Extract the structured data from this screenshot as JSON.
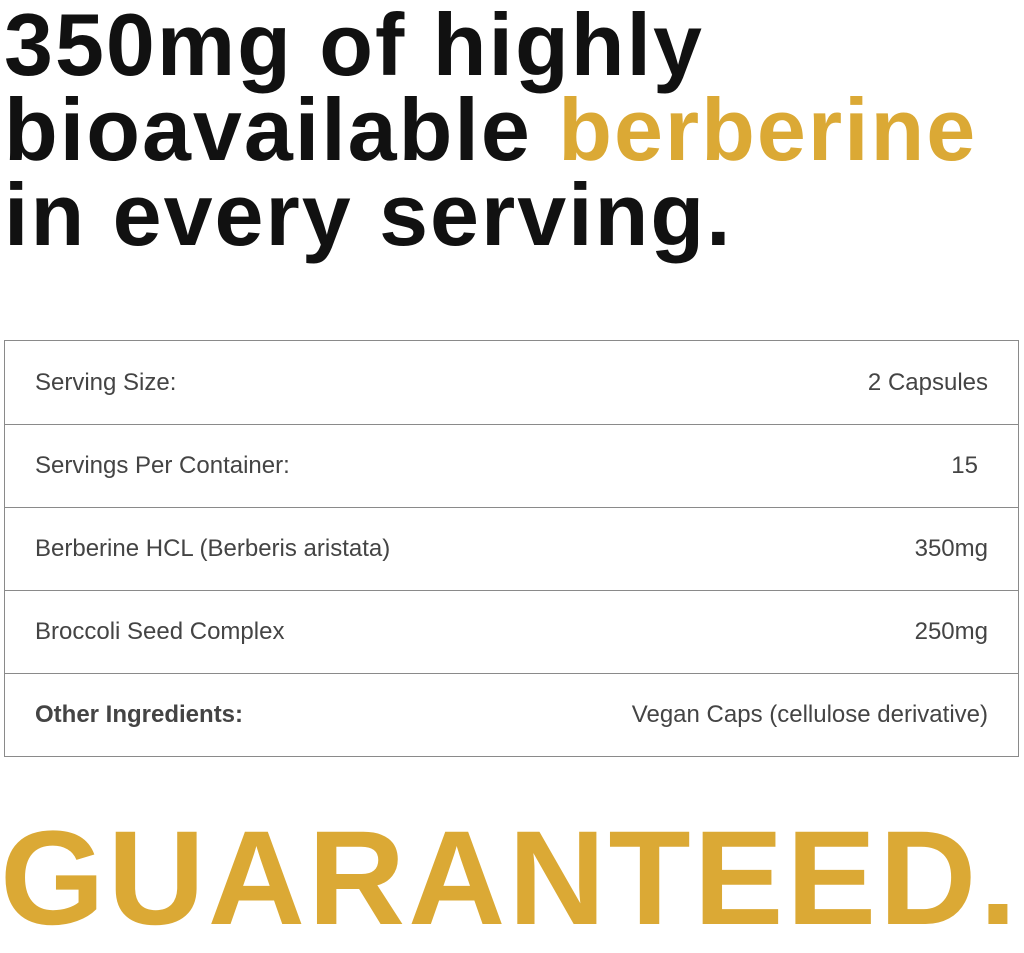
{
  "headline": {
    "line1": "350mg of highly",
    "line2_prefix": "bioavailable ",
    "line2_accent": "berberine",
    "line3": "in every serving."
  },
  "table": {
    "rows": [
      {
        "label": "Serving Size:",
        "value": "2 Capsules"
      },
      {
        "label": "Servings Per Container:",
        "value": "15"
      },
      {
        "label": "Berberine HCL (Berberis aristata)",
        "value": "350mg"
      },
      {
        "label": "Broccoli Seed Complex",
        "value": "250mg"
      },
      {
        "label": "Other Ingredients:",
        "value": "Vegan Caps (cellulose derivative)"
      }
    ]
  },
  "footer": {
    "text": "GUARANTEED."
  },
  "colors": {
    "accent": "#DBA935",
    "text": "#111111",
    "table_text": "#444444",
    "border": "#8a8a8a"
  }
}
